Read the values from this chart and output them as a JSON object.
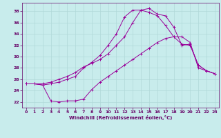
{
  "xlabel": "Windchill (Refroidissement éolien,°C)",
  "background_color": "#c8ecec",
  "grid_color": "#b0d8d8",
  "line_color": "#990099",
  "x_ticks": [
    0,
    1,
    2,
    3,
    4,
    5,
    6,
    7,
    8,
    9,
    10,
    11,
    12,
    13,
    14,
    15,
    16,
    17,
    18,
    19,
    20,
    21,
    22,
    23
  ],
  "y_ticks": [
    22,
    24,
    26,
    28,
    30,
    32,
    34,
    36,
    38
  ],
  "ylim": [
    21.0,
    39.5
  ],
  "xlim": [
    -0.5,
    23.5
  ],
  "line1_y": [
    25.2,
    25.2,
    25.0,
    25.2,
    25.5,
    26.0,
    26.5,
    28.0,
    29.0,
    30.2,
    32.0,
    34.0,
    37.0,
    38.2,
    38.2,
    37.8,
    37.2,
    35.5,
    33.5,
    32.2,
    32.0,
    28.5,
    27.5,
    27.0
  ],
  "line2_y": [
    25.2,
    25.2,
    25.0,
    22.2,
    22.0,
    22.2,
    22.2,
    22.5,
    24.2,
    25.5,
    26.5,
    27.5,
    28.5,
    29.5,
    30.5,
    31.5,
    32.5,
    33.2,
    33.5,
    33.5,
    32.5,
    28.0,
    27.5,
    27.0
  ],
  "line3_y": [
    25.2,
    25.2,
    25.2,
    25.5,
    26.0,
    26.5,
    27.2,
    28.2,
    28.8,
    29.5,
    30.5,
    32.0,
    33.5,
    36.0,
    38.2,
    38.5,
    37.5,
    37.2,
    35.2,
    32.0,
    32.2,
    28.5,
    27.5,
    27.0
  ],
  "tick_fontsize": 4.5,
  "xlabel_fontsize": 5.0
}
